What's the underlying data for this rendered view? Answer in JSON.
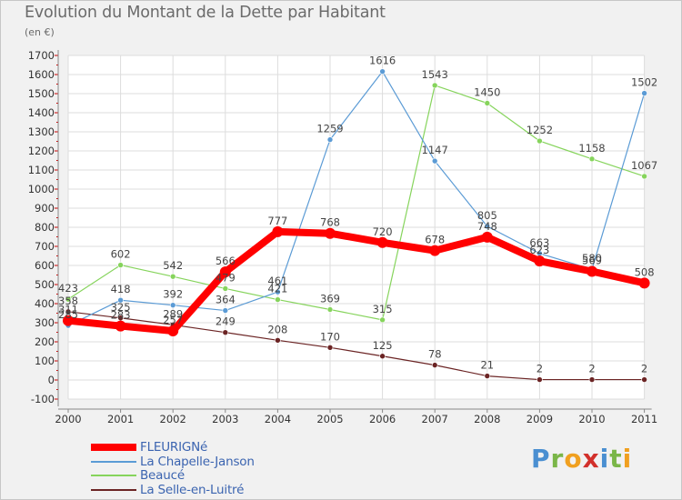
{
  "title": "Evolution du Montant de la Dette par Habitant",
  "subtitle": "(en €)",
  "brand": {
    "text": "Proxiti",
    "letters": [
      {
        "ch": "P",
        "color": "#4a8fd1"
      },
      {
        "ch": "r",
        "color": "#7ab648"
      },
      {
        "ch": "o",
        "color": "#f0a020"
      },
      {
        "ch": "x",
        "color": "#d2302b"
      },
      {
        "ch": "i",
        "color": "#4a8fd1"
      },
      {
        "ch": "t",
        "color": "#7ab648"
      },
      {
        "ch": "i",
        "color": "#f0a020"
      }
    ]
  },
  "chart_data": {
    "type": "line",
    "x": [
      "2000",
      "2001",
      "2002",
      "2003",
      "2004",
      "2005",
      "2006",
      "2007",
      "2008",
      "2009",
      "2010",
      "2011"
    ],
    "ylim": [
      -100,
      1700
    ],
    "yticks": [
      -100,
      0,
      100,
      200,
      300,
      400,
      500,
      600,
      700,
      800,
      900,
      1000,
      1100,
      1200,
      1300,
      1400,
      1500,
      1600,
      1700
    ],
    "grid": true,
    "legend_position": "bottom-left",
    "series": [
      {
        "name": "FLEURIGNé",
        "color": "#ff0000",
        "width": 8,
        "values": [
          311,
          283,
          257,
          566,
          777,
          768,
          720,
          678,
          748,
          623,
          569,
          508
        ],
        "labels": [
          "311",
          "283",
          "257",
          "566",
          "777",
          "768",
          "720",
          "678",
          "748",
          "623",
          "569",
          "508"
        ]
      },
      {
        "name": "La Chapelle-Janson",
        "color": "#5b9bd5",
        "width": 1.2,
        "values": [
          285,
          418,
          392,
          364,
          461,
          1259,
          1616,
          1147,
          805,
          663,
          580,
          1502
        ],
        "labels": [
          "285",
          "418",
          "392",
          "364",
          "461",
          "1259",
          "1616",
          "1147",
          "805",
          "663",
          "580",
          "1502"
        ]
      },
      {
        "name": "Beaucé",
        "color": "#86d45c",
        "width": 1.2,
        "values": [
          423,
          602,
          542,
          479,
          421,
          369,
          315,
          1543,
          1450,
          1252,
          1158,
          1067
        ],
        "labels": [
          "423",
          "602",
          "542",
          "479",
          "421",
          "369",
          "315",
          "1543",
          "1450",
          "1252",
          "1158",
          "1067"
        ]
      },
      {
        "name": "La Selle-en-Luitré",
        "color": "#6b2424",
        "width": 1.2,
        "values": [
          358,
          325,
          289,
          249,
          208,
          170,
          125,
          78,
          21,
          2,
          2,
          2
        ],
        "labels": [
          "358",
          "325",
          "289",
          "249",
          "208",
          "170",
          "125",
          "78",
          "21",
          "2",
          "2",
          "2"
        ]
      }
    ]
  }
}
